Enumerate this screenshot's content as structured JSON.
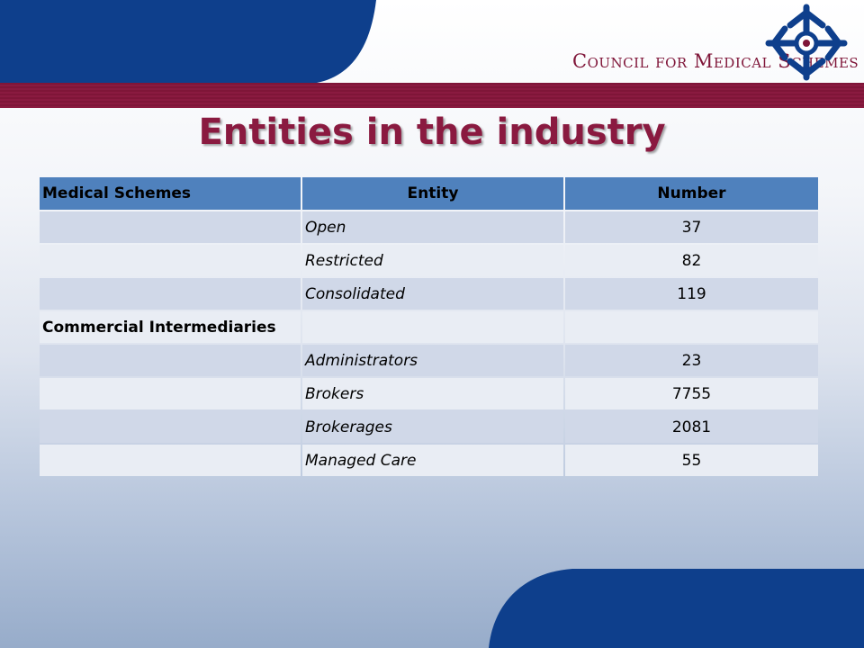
{
  "header": {
    "organization": "Council for Medical Schemes",
    "logo_icon": "cms-cross-logo-icon"
  },
  "slide": {
    "title": "Entities in the industry"
  },
  "table": {
    "columns": [
      "Medical Schemes",
      "Entity",
      "Number"
    ],
    "rows": [
      {
        "group": "",
        "entity": "Open",
        "number": "37"
      },
      {
        "group": "",
        "entity": "Restricted",
        "number": "82"
      },
      {
        "group": "",
        "entity": "Consolidated",
        "number": "119"
      },
      {
        "group": "Commercial Intermediaries",
        "entity": "",
        "number": ""
      },
      {
        "group": "",
        "entity": "Administrators",
        "number": "23"
      },
      {
        "group": "",
        "entity": "Brokers",
        "number": "7755"
      },
      {
        "group": "",
        "entity": "Brokerages",
        "number": "2081"
      },
      {
        "group": "",
        "entity": "Managed Care",
        "number": "55"
      }
    ]
  },
  "colors": {
    "navy": "#0e3f8c",
    "maroon": "#7f1538",
    "header_blue": "#4f81bd",
    "row_dark": "#d0d8e8",
    "row_light": "#e9edf4"
  }
}
